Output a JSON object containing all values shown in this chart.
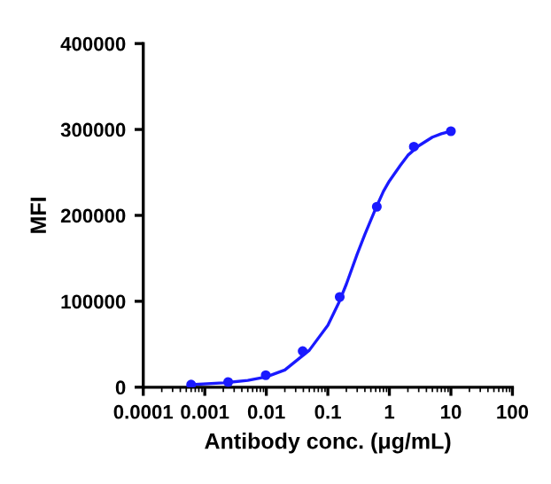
{
  "chart_data": {
    "type": "scatter",
    "xlabel": "Antibody conc. (μg/mL)",
    "ylabel": "MFI",
    "log": "x",
    "xlim": [
      0.0001,
      100
    ],
    "xticks": [
      {
        "value": 0.0001,
        "label": "0.0001"
      },
      {
        "value": 0.001,
        "label": "0.001"
      },
      {
        "value": 0.01,
        "label": "0.01"
      },
      {
        "value": 0.1,
        "label": "0.1"
      },
      {
        "value": 1,
        "label": "1"
      },
      {
        "value": 10,
        "label": "10"
      },
      {
        "value": 100,
        "label": "100"
      }
    ],
    "ylim": [
      0,
      400000
    ],
    "yticks": [
      0,
      100000,
      200000,
      300000,
      400000
    ],
    "grid": false,
    "legend": false,
    "series": [
      {
        "type": "line",
        "color": "#1a1aff",
        "marker": "none",
        "x": [
          0.0006,
          0.002,
          0.005,
          0.01,
          0.02,
          0.05,
          0.1,
          0.15,
          0.2,
          0.3,
          0.4,
          0.6,
          0.8,
          1,
          1.5,
          2,
          3,
          5,
          7,
          10
        ],
        "values": [
          3000,
          5000,
          8000,
          12000,
          20000,
          43000,
          72000,
          98000,
          120000,
          155000,
          178000,
          208000,
          228000,
          240000,
          258000,
          270000,
          281000,
          291000,
          295000,
          298000
        ]
      },
      {
        "color": "#1a1aff",
        "marker": "circle",
        "x": [
          0.0006,
          0.0024,
          0.0098,
          0.039,
          0.156,
          0.625,
          2.5,
          10
        ],
        "values": [
          3000,
          6000,
          14000,
          42000,
          105000,
          210000,
          280000,
          298000
        ]
      }
    ]
  }
}
